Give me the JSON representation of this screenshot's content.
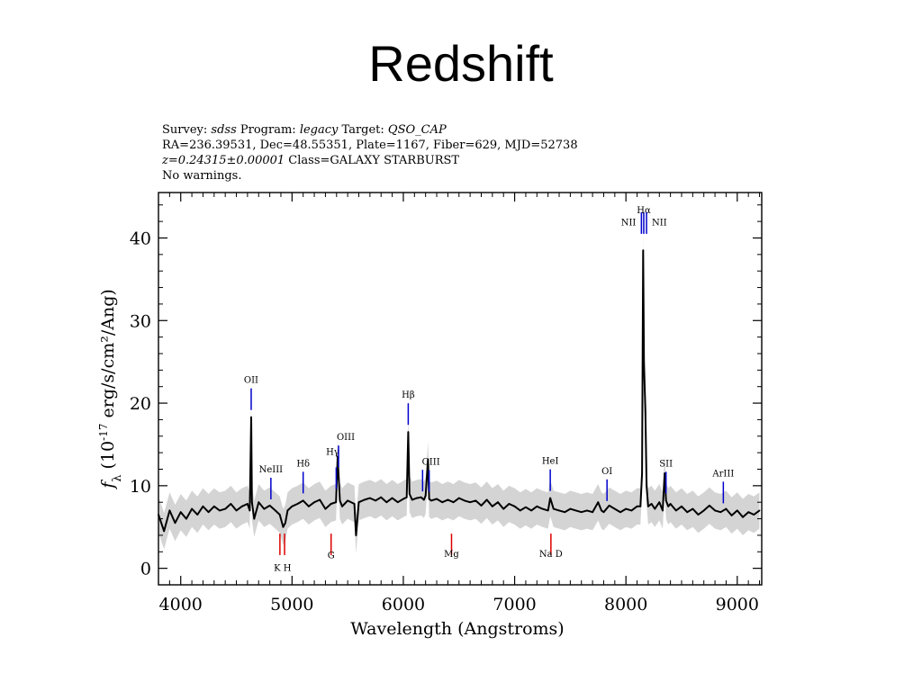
{
  "slide": {
    "title": "Redshift"
  },
  "header": {
    "survey_label": "Survey:",
    "survey": "sdss",
    "program_label": "Program:",
    "program": "legacy",
    "target_label": "Target:",
    "target": "QSO_CAP",
    "line2": "RA=236.39531, Dec=48.55351, Plate=1167, Fiber=629, MJD=52738",
    "z_value": "z=0.24315±0.00001",
    "class_text": "Class=GALAXY STARBURST",
    "warnings": "No warnings."
  },
  "colors": {
    "emission": "#0000cc",
    "absorption": "#dd0000",
    "flux": "#000000",
    "noise": "#b8b8b8"
  },
  "chart_data": {
    "type": "line",
    "xlabel": "Wavelength (Angstroms)",
    "ylabel": "f_λ (10^-17 erg/s/cm²/Ang)",
    "xlim": [
      3800,
      9220
    ],
    "ylim": [
      -2,
      45.5
    ],
    "xticks": [
      "4000",
      "5000",
      "6000",
      "7000",
      "8000",
      "9000"
    ],
    "yticks": [
      "0",
      "10",
      "20",
      "30",
      "40"
    ],
    "series": [
      {
        "x": [
          3800,
          3850,
          3900,
          3950,
          4000,
          4050,
          4100,
          4150,
          4200,
          4250,
          4300,
          4350,
          4400,
          4450,
          4500,
          4550,
          4600,
          4620,
          4633,
          4640,
          4660,
          4700,
          4750,
          4800,
          4850,
          4890,
          4920,
          4940,
          4960,
          5000,
          5050,
          5100,
          5150,
          5200,
          5250,
          5300,
          5350,
          5395,
          5410,
          5430,
          5450,
          5500,
          5560,
          5575,
          5600,
          5650,
          5700,
          5750,
          5800,
          5850,
          5900,
          5950,
          6000,
          6030,
          6044,
          6055,
          6080,
          6120,
          6160,
          6185,
          6200,
          6222,
          6232,
          6250,
          6300,
          6350,
          6400,
          6450,
          6500,
          6550,
          6600,
          6650,
          6700,
          6750,
          6800,
          6850,
          6900,
          6950,
          7000,
          7050,
          7100,
          7150,
          7200,
          7250,
          7300,
          7320,
          7350,
          7400,
          7450,
          7500,
          7550,
          7600,
          7650,
          7700,
          7750,
          7780,
          7800,
          7850,
          7900,
          7950,
          8000,
          8050,
          8100,
          8130,
          8145,
          8155,
          8162,
          8175,
          8185,
          8200,
          8230,
          8260,
          8300,
          8330,
          8348,
          8360,
          8380,
          8400,
          8450,
          8500,
          8550,
          8600,
          8650,
          8700,
          8750,
          8800,
          8850,
          8900,
          8950,
          9000,
          9050,
          9100,
          9150,
          9200
        ],
        "y": [
          6.5,
          4.5,
          7.0,
          5.5,
          6.8,
          6.0,
          7.2,
          6.5,
          7.5,
          6.8,
          7.5,
          7.0,
          7.2,
          7.8,
          7.0,
          7.5,
          7.8,
          7.0,
          18.3,
          8.0,
          6.0,
          8.0,
          7.2,
          7.6,
          7.0,
          6.5,
          5.0,
          5.5,
          7.0,
          7.5,
          7.8,
          8.2,
          7.5,
          8.0,
          8.3,
          7.2,
          7.8,
          8.0,
          13.5,
          8.2,
          7.5,
          8.2,
          7.8,
          4.0,
          8.0,
          8.3,
          8.5,
          8.2,
          8.6,
          8.0,
          8.5,
          8.0,
          8.4,
          8.6,
          16.5,
          9.0,
          8.3,
          8.5,
          8.6,
          8.3,
          8.8,
          13.2,
          8.4,
          8.2,
          8.4,
          8.0,
          8.3,
          8.0,
          8.5,
          8.2,
          8.0,
          8.2,
          7.6,
          8.3,
          7.5,
          8.0,
          7.2,
          7.8,
          7.5,
          7.0,
          7.4,
          7.0,
          7.5,
          7.2,
          7.0,
          8.5,
          7.2,
          7.0,
          6.8,
          7.2,
          7.0,
          6.8,
          7.0,
          6.8,
          8.0,
          7.0,
          6.8,
          7.6,
          7.2,
          6.8,
          7.2,
          7.0,
          7.5,
          7.5,
          11.5,
          38.5,
          25.0,
          19.0,
          10.0,
          7.5,
          7.8,
          7.2,
          8.0,
          7.0,
          11.5,
          8.2,
          7.5,
          7.8,
          7.0,
          7.5,
          6.8,
          7.2,
          6.5,
          7.0,
          7.6,
          7.0,
          6.8,
          7.2,
          6.4,
          7.0,
          6.2,
          6.8,
          6.5,
          7.0
        ]
      }
    ],
    "line_markers": [
      {
        "label": "OII",
        "wavelength": 4633,
        "kind": "emission"
      },
      {
        "label": "NeIII",
        "wavelength": 4810,
        "kind": "emission"
      },
      {
        "label": "Hδ",
        "wavelength": 5100,
        "kind": "emission"
      },
      {
        "label": "Hγ",
        "wavelength": 5397,
        "kind": "emission"
      },
      {
        "label": "OIII",
        "wavelength": 5418,
        "kind": "emission"
      },
      {
        "label": "Hβ",
        "wavelength": 6044,
        "kind": "emission"
      },
      {
        "label": "OIII",
        "wavelength": 6173,
        "kind": "emission"
      },
      {
        "label": "OIII",
        "wavelength": 6232,
        "kind": "emission"
      },
      {
        "label": "HeI",
        "wavelength": 7320,
        "kind": "emission"
      },
      {
        "label": "OI",
        "wavelength": 7830,
        "kind": "emission"
      },
      {
        "label": "NII",
        "wavelength": 8139,
        "kind": "emission"
      },
      {
        "label": "Hα",
        "wavelength": 8160,
        "kind": "emission"
      },
      {
        "label": "NII",
        "wavelength": 8185,
        "kind": "emission"
      },
      {
        "label": "SII",
        "wavelength": 8360,
        "kind": "emission"
      },
      {
        "label": "ArIII",
        "wavelength": 8875,
        "kind": "emission"
      },
      {
        "label": "K",
        "wavelength": 4891,
        "kind": "absorption"
      },
      {
        "label": "H",
        "wavelength": 4933,
        "kind": "absorption"
      },
      {
        "label": "G",
        "wavelength": 5351,
        "kind": "absorption"
      },
      {
        "label": "Mg",
        "wavelength": 6433,
        "kind": "absorption"
      },
      {
        "label": "Na D",
        "wavelength": 7326,
        "kind": "absorption"
      }
    ]
  }
}
